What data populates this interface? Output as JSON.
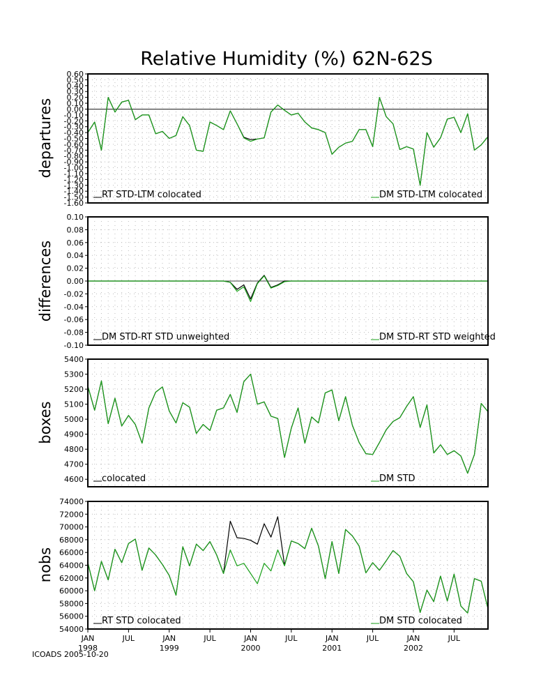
{
  "title": "Relative Humidity (%) 62N-62S",
  "footer": "ICOADS 2005-10-20",
  "colors": {
    "rt": "#000000",
    "dm": "#1aa01a"
  },
  "x_axis": {
    "labels": [
      "JAN",
      "JUL",
      "JAN",
      "JUL",
      "JAN",
      "JUL",
      "JAN",
      "JUL",
      "JAN",
      "JUL"
    ],
    "years": [
      "1998",
      "1999",
      "2000",
      "2001",
      "2002"
    ],
    "months": [
      "Jan 1998",
      "Feb 1998",
      "Mar 1998",
      "Apr 1998",
      "May 1998",
      "Jun 1998",
      "Jul 1998",
      "Aug 1998",
      "Sep 1998",
      "Oct 1998",
      "Nov 1998",
      "Dec 1998",
      "Jan 1999",
      "Feb 1999",
      "Mar 1999",
      "Apr 1999",
      "May 1999",
      "Jun 1999",
      "Jul 1999",
      "Aug 1999",
      "Sep 1999",
      "Oct 1999",
      "Nov 1999",
      "Dec 1999",
      "Jan 2000",
      "Feb 2000",
      "Mar 2000",
      "Apr 2000",
      "May 2000",
      "Jun 2000",
      "Jul 2000",
      "Aug 2000",
      "Sep 2000",
      "Oct 2000",
      "Nov 2000",
      "Dec 2000",
      "Jan 2001",
      "Feb 2001",
      "Mar 2001",
      "Apr 2001",
      "May 2001",
      "Jun 2001",
      "Jul 2001",
      "Aug 2001",
      "Sep 2001",
      "Oct 2001",
      "Nov 2001",
      "Dec 2001",
      "Jan 2002",
      "Feb 2002",
      "Mar 2002",
      "Apr 2002",
      "May 2002",
      "Jun 2002",
      "Jul 2002",
      "Aug 2002",
      "Sep 2002",
      "Oct 2002",
      "Nov 2002",
      "Dec 2002"
    ]
  },
  "chart_data": [
    {
      "type": "line",
      "ylabel": "departures",
      "ylim": [
        -1.6,
        0.6
      ],
      "yticks": [
        "0.60",
        "0.50",
        "0.40",
        "0.30",
        "0.20",
        "0.10",
        "0.00",
        "-0.10",
        "-0.20",
        "-0.30",
        "-0.40",
        "-0.50",
        "-0.60",
        "-0.70",
        "-0.80",
        "-0.90",
        "-1.00",
        "-1.10",
        "-1.20",
        "-1.30",
        "-1.40",
        "-1.50",
        "-1.60"
      ],
      "zero_line": true,
      "series": [
        {
          "name": "RT STD-LTM colocated",
          "color": "rt",
          "legend_pos": "bottom-left",
          "values": [
            -0.4,
            -0.22,
            -0.7,
            0.2,
            -0.05,
            0.12,
            0.15,
            -0.18,
            -0.1,
            -0.1,
            -0.42,
            -0.38,
            -0.5,
            -0.45,
            -0.13,
            -0.28,
            -0.7,
            -0.72,
            -0.22,
            -0.28,
            -0.35,
            -0.03,
            -0.25,
            -0.48,
            -0.52,
            -0.51,
            -0.49,
            -0.05,
            0.07,
            -0.02,
            -0.1,
            -0.07,
            -0.22,
            -0.32,
            -0.35,
            -0.4,
            -0.77,
            -0.65,
            -0.58,
            -0.55,
            -0.35,
            -0.35,
            -0.64,
            0.2,
            -0.13,
            -0.25,
            -0.69,
            -0.64,
            -0.68,
            -1.3,
            -0.4,
            -0.65,
            -0.49,
            -0.17,
            -0.14,
            -0.4,
            -0.08,
            -0.7,
            -0.61,
            -0.47
          ]
        },
        {
          "name": "DM STD-LTM colocated",
          "color": "dm",
          "legend_pos": "bottom-right",
          "values": [
            -0.4,
            -0.22,
            -0.7,
            0.2,
            -0.05,
            0.12,
            0.15,
            -0.18,
            -0.1,
            -0.1,
            -0.42,
            -0.38,
            -0.5,
            -0.45,
            -0.13,
            -0.28,
            -0.7,
            -0.72,
            -0.22,
            -0.28,
            -0.35,
            -0.03,
            -0.25,
            -0.49,
            -0.55,
            -0.51,
            -0.49,
            -0.05,
            0.07,
            -0.02,
            -0.1,
            -0.07,
            -0.22,
            -0.32,
            -0.35,
            -0.4,
            -0.77,
            -0.65,
            -0.58,
            -0.55,
            -0.35,
            -0.35,
            -0.64,
            0.2,
            -0.13,
            -0.25,
            -0.69,
            -0.64,
            -0.68,
            -1.3,
            -0.4,
            -0.65,
            -0.49,
            -0.17,
            -0.14,
            -0.4,
            -0.08,
            -0.7,
            -0.61,
            -0.47
          ]
        }
      ]
    },
    {
      "type": "line",
      "ylabel": "differences",
      "ylim": [
        -0.1,
        0.1
      ],
      "yticks": [
        "0.10",
        "0.08",
        "0.06",
        "0.04",
        "0.02",
        "0.00",
        "-0.02",
        "-0.04",
        "-0.06",
        "-0.08",
        "-0.10"
      ],
      "zero_line": true,
      "series": [
        {
          "name": "DM STD-RT STD unweighted",
          "color": "rt",
          "legend_pos": "bottom-left",
          "values": [
            0,
            0,
            0,
            0,
            0,
            0,
            0,
            0,
            0,
            0,
            0,
            0,
            0,
            0,
            0,
            0,
            0,
            0,
            0,
            0,
            0,
            -0.002,
            -0.013,
            -0.006,
            -0.028,
            -0.003,
            0.009,
            -0.01,
            -0.006,
            0.0,
            0,
            0,
            0,
            0,
            0,
            0,
            0,
            0,
            0,
            0,
            0,
            0,
            0,
            0,
            0,
            0,
            0,
            0,
            0,
            0,
            0,
            0,
            0,
            0,
            0,
            0,
            0,
            0,
            0,
            0
          ]
        },
        {
          "name": "DM STD-RT STD weighted",
          "color": "dm",
          "legend_pos": "bottom-right",
          "values": [
            0,
            0,
            0,
            0,
            0,
            0,
            0,
            0,
            0,
            0,
            0,
            0,
            0,
            0,
            0,
            0,
            0,
            0,
            0,
            0,
            0,
            -0.002,
            -0.016,
            -0.009,
            -0.032,
            -0.004,
            0.008,
            -0.011,
            -0.007,
            -0.001,
            0,
            0,
            0,
            0,
            0,
            0,
            0,
            0,
            0,
            0,
            0,
            0,
            0,
            0,
            0,
            0,
            0,
            0,
            0,
            0,
            0,
            0,
            0,
            0,
            0,
            0,
            0,
            0,
            0,
            0
          ]
        }
      ]
    },
    {
      "type": "line",
      "ylabel": "boxes",
      "ylim": [
        4550,
        5400
      ],
      "yticks": [
        "5400",
        "5300",
        "5200",
        "5100",
        "5000",
        "4900",
        "4800",
        "4700",
        "4600"
      ],
      "zero_line": false,
      "series": [
        {
          "name": "colocated",
          "color": "rt",
          "legend_pos": "bottom-left",
          "values": [
            5220,
            5060,
            5255,
            4970,
            5140,
            4955,
            5025,
            4965,
            4840,
            5075,
            5180,
            5215,
            5055,
            4975,
            5110,
            5080,
            4905,
            4965,
            4925,
            5060,
            5075,
            5165,
            5045,
            5250,
            5300,
            5100,
            5115,
            5020,
            5005,
            4745,
            4940,
            5075,
            4840,
            5015,
            4975,
            5175,
            5195,
            4990,
            5150,
            4960,
            4845,
            4770,
            4765,
            4845,
            4930,
            4985,
            5010,
            5085,
            5150,
            4945,
            5095,
            4775,
            4830,
            4765,
            4790,
            4755,
            4640,
            4765,
            5105,
            5050
          ]
        },
        {
          "name": "DM STD",
          "color": "dm",
          "legend_pos": "bottom-right",
          "values": [
            5220,
            5060,
            5255,
            4970,
            5140,
            4955,
            5025,
            4965,
            4840,
            5075,
            5180,
            5215,
            5055,
            4975,
            5110,
            5080,
            4905,
            4965,
            4925,
            5060,
            5075,
            5165,
            5045,
            5250,
            5300,
            5100,
            5115,
            5020,
            5005,
            4745,
            4940,
            5075,
            4840,
            5015,
            4975,
            5175,
            5195,
            4990,
            5150,
            4960,
            4845,
            4770,
            4765,
            4845,
            4930,
            4985,
            5010,
            5085,
            5150,
            4945,
            5095,
            4775,
            4830,
            4765,
            4790,
            4755,
            4640,
            4765,
            5105,
            5050
          ]
        }
      ]
    },
    {
      "type": "line",
      "ylabel": "nobs",
      "ylim": [
        54000,
        74000
      ],
      "yticks": [
        "74000",
        "72000",
        "70000",
        "68000",
        "66000",
        "64000",
        "62000",
        "60000",
        "58000",
        "56000",
        "54000"
      ],
      "zero_line": false,
      "series": [
        {
          "name": "RT STD colocated",
          "color": "rt",
          "legend_pos": "bottom-left",
          "values": [
            64400,
            60000,
            64600,
            61700,
            66500,
            64400,
            67400,
            68100,
            63200,
            66700,
            65600,
            64100,
            62400,
            59300,
            66900,
            63900,
            67300,
            66300,
            67700,
            65600,
            62700,
            70900,
            68300,
            68200,
            67900,
            67300,
            70500,
            68400,
            71600,
            64000,
            67800,
            67400,
            66600,
            69800,
            67000,
            61900,
            67700,
            62700,
            69600,
            68600,
            67000,
            62800,
            64400,
            63200,
            64700,
            66300,
            65400,
            62700,
            61400,
            56600,
            60100,
            58300,
            62300,
            58400,
            62600,
            57600,
            56500,
            61900,
            61500,
            57200
          ]
        },
        {
          "name": "DM STD colocated",
          "color": "dm",
          "legend_pos": "bottom-right",
          "values": [
            64400,
            60000,
            64600,
            61700,
            66500,
            64400,
            67400,
            68100,
            63200,
            66700,
            65600,
            64100,
            62400,
            59300,
            66900,
            63900,
            67300,
            66300,
            67700,
            65600,
            62700,
            66400,
            63900,
            64300,
            62700,
            61100,
            64300,
            63100,
            66400,
            63900,
            67800,
            67400,
            66600,
            69800,
            67000,
            61900,
            67700,
            62700,
            69600,
            68600,
            67000,
            62800,
            64400,
            63200,
            64700,
            66300,
            65400,
            62700,
            61400,
            56600,
            60100,
            58300,
            62300,
            58400,
            62600,
            57600,
            56500,
            61900,
            61500,
            57200
          ]
        }
      ]
    }
  ]
}
